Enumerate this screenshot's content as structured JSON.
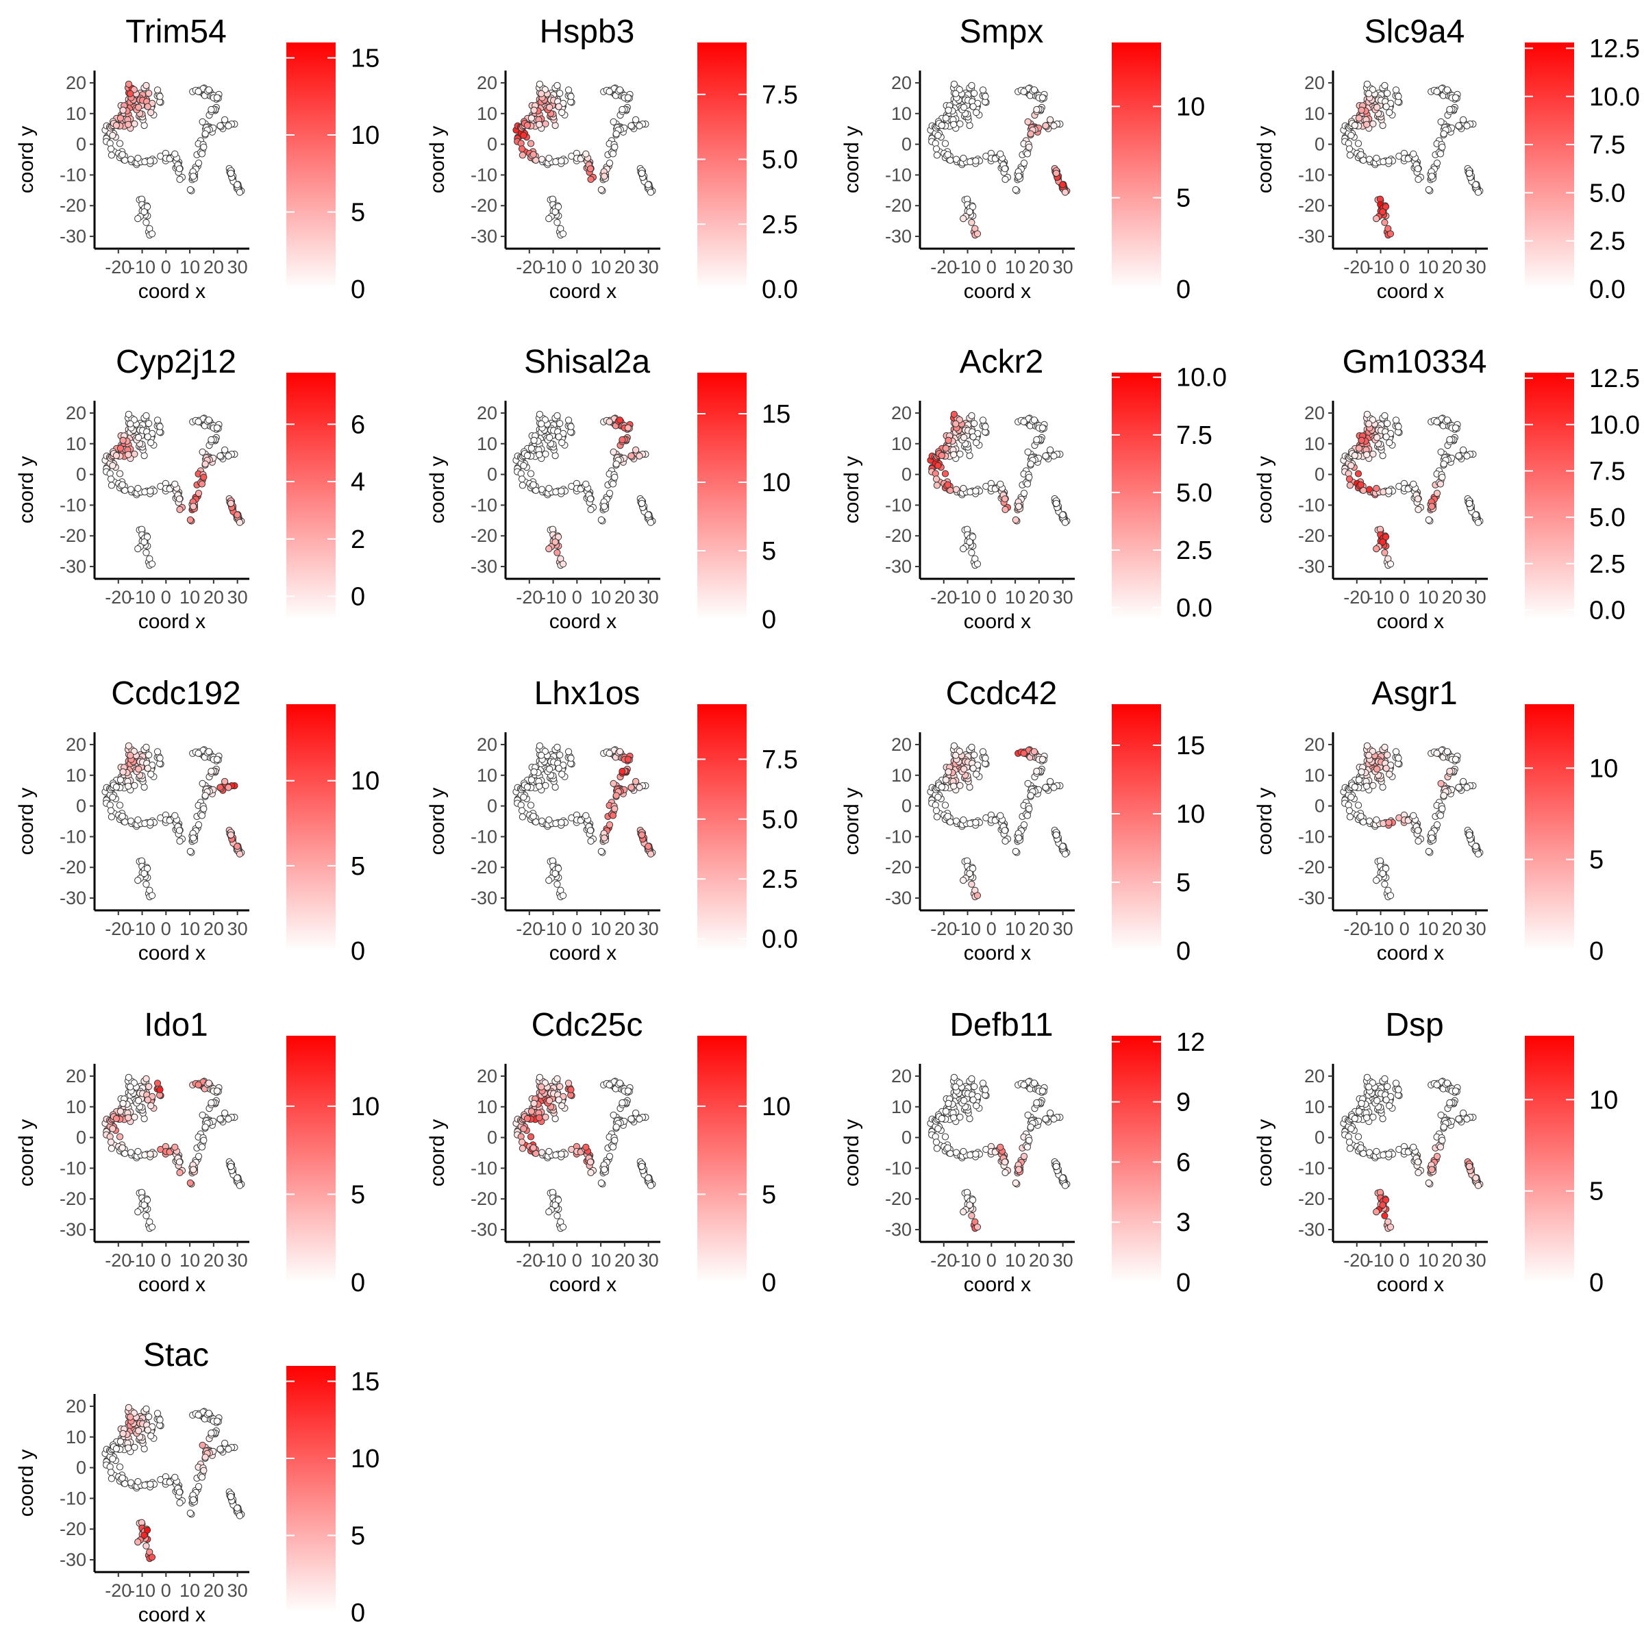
{
  "figure": {
    "background": "#ffffff",
    "point_low_color": "#ffffff",
    "point_high_color": "#ff0000",
    "point_stroke_color": "#333333",
    "grid": false
  },
  "chart_data": [
    {
      "type": "scatter",
      "title": "Trim54",
      "xlabel": "coord x",
      "ylabel": "coord y",
      "x_ticks": [
        "-20",
        "-10",
        "0",
        "10",
        "20",
        "30"
      ],
      "y_ticks": [
        "20",
        "10",
        "0",
        "-10",
        "-20",
        "-30"
      ],
      "colorbar_ticks": [
        "0",
        "5",
        "10",
        "15"
      ],
      "colorbar_range": [
        0,
        16
      ],
      "expression_hotspots": [
        {
          "x": -16,
          "y": 19,
          "v": 15
        },
        {
          "x": -15,
          "y": 12,
          "v": 7
        },
        {
          "x": -10,
          "y": 14,
          "v": 6
        },
        {
          "x": -18,
          "y": 8,
          "v": 5
        }
      ]
    },
    {
      "type": "scatter",
      "title": "Hspb3",
      "xlabel": "coord x",
      "ylabel": "coord y",
      "x_ticks": [
        "-20",
        "-10",
        "0",
        "10",
        "20",
        "30"
      ],
      "y_ticks": [
        "20",
        "10",
        "0",
        "-10",
        "-20",
        "-30"
      ],
      "colorbar_ticks": [
        "0.0",
        "2.5",
        "5.0",
        "7.5"
      ],
      "colorbar_range": [
        0,
        9.5
      ],
      "expression_hotspots": [
        {
          "x": -24,
          "y": 4,
          "v": 9
        },
        {
          "x": -20,
          "y": 1,
          "v": 7
        },
        {
          "x": -14,
          "y": 11,
          "v": 6
        },
        {
          "x": -22,
          "y": -3,
          "v": 6
        },
        {
          "x": 6,
          "y": -10,
          "v": 5
        }
      ]
    },
    {
      "type": "scatter",
      "title": "Smpx",
      "xlabel": "coord x",
      "ylabel": "coord y",
      "x_ticks": [
        "-20",
        "-10",
        "0",
        "10",
        "20",
        "30"
      ],
      "y_ticks": [
        "20",
        "10",
        "0",
        "-10",
        "-20",
        "-30"
      ],
      "colorbar_ticks": [
        "0",
        "5",
        "10"
      ],
      "colorbar_range": [
        0,
        13.5
      ],
      "expression_hotspots": [
        {
          "x": 29,
          "y": -12,
          "v": 12
        },
        {
          "x": 28,
          "y": -9,
          "v": 9
        },
        {
          "x": 19,
          "y": 5,
          "v": 5
        },
        {
          "x": -10,
          "y": -30,
          "v": 6
        }
      ]
    },
    {
      "type": "scatter",
      "title": "Slc9a4",
      "xlabel": "coord x",
      "ylabel": "coord y",
      "x_ticks": [
        "-20",
        "-10",
        "0",
        "10",
        "20",
        "30"
      ],
      "y_ticks": [
        "20",
        "10",
        "0",
        "-10",
        "-20",
        "-30"
      ],
      "colorbar_ticks": [
        "0.0",
        "2.5",
        "5.0",
        "7.5",
        "10.0",
        "12.5"
      ],
      "colorbar_range": [
        0,
        12.8
      ],
      "expression_hotspots": [
        {
          "x": -10,
          "y": -20,
          "v": 12
        },
        {
          "x": -9,
          "y": -25,
          "v": 11
        },
        {
          "x": -8,
          "y": -30,
          "v": 9
        },
        {
          "x": -16,
          "y": 10,
          "v": 5
        }
      ]
    },
    {
      "type": "scatter",
      "title": "Cyp2j12",
      "xlabel": "coord x",
      "ylabel": "coord y",
      "x_ticks": [
        "-20",
        "-10",
        "0",
        "10",
        "20",
        "30"
      ],
      "y_ticks": [
        "20",
        "10",
        "0",
        "-10",
        "-20",
        "-30"
      ],
      "colorbar_ticks": [
        "0",
        "2",
        "4",
        "6"
      ],
      "colorbar_range": [
        -0.8,
        7.8
      ],
      "expression_hotspots": [
        {
          "x": 10,
          "y": -14,
          "v": 7
        },
        {
          "x": 12,
          "y": -6,
          "v": 6
        },
        {
          "x": 15,
          "y": 0,
          "v": 5
        },
        {
          "x": -18,
          "y": 8,
          "v": 4
        },
        {
          "x": 28,
          "y": -12,
          "v": 4
        }
      ]
    },
    {
      "type": "scatter",
      "title": "Shisal2a",
      "xlabel": "coord x",
      "ylabel": "coord y",
      "x_ticks": [
        "-20",
        "-10",
        "0",
        "10",
        "20",
        "30"
      ],
      "y_ticks": [
        "20",
        "10",
        "0",
        "-10",
        "-20",
        "-30"
      ],
      "colorbar_ticks": [
        "0",
        "5",
        "10",
        "15"
      ],
      "colorbar_range": [
        0,
        18
      ],
      "expression_hotspots": [
        {
          "x": 20,
          "y": 18,
          "v": 17
        },
        {
          "x": 18,
          "y": 12,
          "v": 10
        },
        {
          "x": 22,
          "y": 9,
          "v": 8
        },
        {
          "x": -9,
          "y": -25,
          "v": 6
        }
      ]
    },
    {
      "type": "scatter",
      "title": "Ackr2",
      "xlabel": "coord x",
      "ylabel": "coord y",
      "x_ticks": [
        "-20",
        "-10",
        "0",
        "10",
        "20",
        "30"
      ],
      "y_ticks": [
        "20",
        "10",
        "0",
        "-10",
        "-20",
        "-30"
      ],
      "colorbar_ticks": [
        "0.0",
        "2.5",
        "5.0",
        "7.5",
        "10.0"
      ],
      "colorbar_range": [
        -0.5,
        10.2
      ],
      "expression_hotspots": [
        {
          "x": -22,
          "y": 12,
          "v": 10
        },
        {
          "x": -24,
          "y": 4,
          "v": 9
        },
        {
          "x": -20,
          "y": -2,
          "v": 8
        },
        {
          "x": -16,
          "y": 18,
          "v": 7
        },
        {
          "x": 6,
          "y": -12,
          "v": 6
        }
      ]
    },
    {
      "type": "scatter",
      "title": "Gm10334",
      "xlabel": "coord x",
      "ylabel": "coord y",
      "x_ticks": [
        "-20",
        "-10",
        "0",
        "10",
        "20",
        "30"
      ],
      "y_ticks": [
        "20",
        "10",
        "0",
        "-10",
        "-20",
        "-30"
      ],
      "colorbar_ticks": [
        "0.0",
        "2.5",
        "5.0",
        "7.5",
        "10.0",
        "12.5"
      ],
      "colorbar_range": [
        -0.5,
        12.8
      ],
      "expression_hotspots": [
        {
          "x": -20,
          "y": -2,
          "v": 12
        },
        {
          "x": -15,
          "y": -5,
          "v": 10
        },
        {
          "x": -9,
          "y": -21,
          "v": 11
        },
        {
          "x": -17,
          "y": 12,
          "v": 8
        },
        {
          "x": 12,
          "y": -8,
          "v": 7
        }
      ]
    },
    {
      "type": "scatter",
      "title": "Ccdc192",
      "xlabel": "coord x",
      "ylabel": "coord y",
      "x_ticks": [
        "-20",
        "-10",
        "0",
        "10",
        "20",
        "30"
      ],
      "y_ticks": [
        "20",
        "10",
        "0",
        "-10",
        "-20",
        "-30"
      ],
      "colorbar_ticks": [
        "0",
        "5",
        "10"
      ],
      "colorbar_range": [
        0,
        14.5
      ],
      "expression_hotspots": [
        {
          "x": 28,
          "y": 5,
          "v": 14
        },
        {
          "x": 25,
          "y": 6,
          "v": 11
        },
        {
          "x": 28,
          "y": -12,
          "v": 7
        },
        {
          "x": -14,
          "y": 14,
          "v": 5
        }
      ]
    },
    {
      "type": "scatter",
      "title": "Lhx1os",
      "xlabel": "coord x",
      "ylabel": "coord y",
      "x_ticks": [
        "-20",
        "-10",
        "0",
        "10",
        "20",
        "30"
      ],
      "y_ticks": [
        "20",
        "10",
        "0",
        "-10",
        "-20",
        "-30"
      ],
      "colorbar_ticks": [
        "0.0",
        "2.5",
        "5.0",
        "7.5"
      ],
      "colorbar_range": [
        -0.5,
        9.8
      ],
      "expression_hotspots": [
        {
          "x": 17,
          "y": 2,
          "v": 9
        },
        {
          "x": 20,
          "y": 10,
          "v": 9
        },
        {
          "x": 15,
          "y": -6,
          "v": 8
        },
        {
          "x": 22,
          "y": 14,
          "v": 7
        },
        {
          "x": 28,
          "y": -12,
          "v": 5
        }
      ]
    },
    {
      "type": "scatter",
      "title": "Ccdc42",
      "xlabel": "coord x",
      "ylabel": "coord y",
      "x_ticks": [
        "-20",
        "-10",
        "0",
        "10",
        "20",
        "30"
      ],
      "y_ticks": [
        "20",
        "10",
        "0",
        "-10",
        "-20",
        "-30"
      ],
      "colorbar_ticks": [
        "0",
        "5",
        "10",
        "15"
      ],
      "colorbar_range": [
        0,
        18
      ],
      "expression_hotspots": [
        {
          "x": 11,
          "y": 18,
          "v": 14
        },
        {
          "x": 14,
          "y": 17,
          "v": 10
        },
        {
          "x": -14,
          "y": 12,
          "v": 6
        },
        {
          "x": -8,
          "y": -30,
          "v": 6
        }
      ]
    },
    {
      "type": "scatter",
      "title": "Asgr1",
      "xlabel": "coord x",
      "ylabel": "coord y",
      "x_ticks": [
        "-20",
        "-10",
        "0",
        "10",
        "20",
        "30"
      ],
      "y_ticks": [
        "20",
        "10",
        "0",
        "-10",
        "-20",
        "-30"
      ],
      "colorbar_ticks": [
        "0",
        "5",
        "10"
      ],
      "colorbar_range": [
        0,
        13.5
      ],
      "expression_hotspots": [
        {
          "x": -4,
          "y": -9,
          "v": 13
        },
        {
          "x": -3,
          "y": -10,
          "v": 12
        },
        {
          "x": 14,
          "y": 10,
          "v": 5
        },
        {
          "x": -12,
          "y": 14,
          "v": 5
        }
      ]
    },
    {
      "type": "scatter",
      "title": "Ido1",
      "xlabel": "coord x",
      "ylabel": "coord y",
      "x_ticks": [
        "-20",
        "-10",
        "0",
        "10",
        "20",
        "30"
      ],
      "y_ticks": [
        "20",
        "10",
        "0",
        "-10",
        "-20",
        "-30"
      ],
      "colorbar_ticks": [
        "0",
        "5",
        "10"
      ],
      "colorbar_range": [
        0,
        14
      ],
      "expression_hotspots": [
        {
          "x": -3,
          "y": 15,
          "v": 12
        },
        {
          "x": 0,
          "y": -2,
          "v": 9
        },
        {
          "x": -20,
          "y": 4,
          "v": 7
        },
        {
          "x": 8,
          "y": -14,
          "v": 7
        },
        {
          "x": 14,
          "y": 18,
          "v": 6
        }
      ]
    },
    {
      "type": "scatter",
      "title": "Cdc25c",
      "xlabel": "coord x",
      "ylabel": "coord y",
      "x_ticks": [
        "-20",
        "-10",
        "0",
        "10",
        "20",
        "30"
      ],
      "y_ticks": [
        "20",
        "10",
        "0",
        "-10",
        "-20",
        "-30"
      ],
      "colorbar_ticks": [
        "0",
        "5",
        "10"
      ],
      "colorbar_range": [
        0,
        14
      ],
      "expression_hotspots": [
        {
          "x": -18,
          "y": 4,
          "v": 13
        },
        {
          "x": -20,
          "y": -2,
          "v": 11
        },
        {
          "x": -14,
          "y": 12,
          "v": 9
        },
        {
          "x": -2,
          "y": 16,
          "v": 8
        },
        {
          "x": 3,
          "y": -5,
          "v": 10
        }
      ]
    },
    {
      "type": "scatter",
      "title": "Defb11",
      "xlabel": "coord x",
      "ylabel": "coord y",
      "x_ticks": [
        "-20",
        "-10",
        "0",
        "10",
        "20",
        "30"
      ],
      "y_ticks": [
        "20",
        "10",
        "0",
        "-10",
        "-20",
        "-30"
      ],
      "colorbar_ticks": [
        "0",
        "3",
        "6",
        "9",
        "12"
      ],
      "colorbar_range": [
        0,
        12.3
      ],
      "expression_hotspots": [
        {
          "x": 6,
          "y": 2,
          "v": 12
        },
        {
          "x": 7,
          "y": -3,
          "v": 9
        },
        {
          "x": -8,
          "y": -30,
          "v": 8
        },
        {
          "x": 12,
          "y": -10,
          "v": 5
        }
      ]
    },
    {
      "type": "scatter",
      "title": "Dsp",
      "xlabel": "coord x",
      "ylabel": "coord y",
      "x_ticks": [
        "-20",
        "-10",
        "0",
        "10",
        "20",
        "30"
      ],
      "y_ticks": [
        "20",
        "10",
        "0",
        "-10",
        "-20",
        "-30"
      ],
      "colorbar_ticks": [
        "0",
        "5",
        "10"
      ],
      "colorbar_range": [
        0,
        13.5
      ],
      "expression_hotspots": [
        {
          "x": -10,
          "y": -25,
          "v": 13
        },
        {
          "x": -8,
          "y": -21,
          "v": 10
        },
        {
          "x": 28,
          "y": -10,
          "v": 6
        },
        {
          "x": 12,
          "y": -8,
          "v": 5
        }
      ]
    },
    {
      "type": "scatter",
      "title": "Stac",
      "xlabel": "coord x",
      "ylabel": "coord y",
      "x_ticks": [
        "-20",
        "-10",
        "0",
        "10",
        "20",
        "30"
      ],
      "y_ticks": [
        "20",
        "10",
        "0",
        "-10",
        "-20",
        "-30"
      ],
      "colorbar_ticks": [
        "0",
        "5",
        "10",
        "15"
      ],
      "colorbar_range": [
        0,
        16
      ],
      "expression_hotspots": [
        {
          "x": -8,
          "y": -21,
          "v": 15
        },
        {
          "x": -6,
          "y": -31,
          "v": 12
        },
        {
          "x": 13,
          "y": 5,
          "v": 8
        },
        {
          "x": -14,
          "y": 14,
          "v": 6
        }
      ]
    }
  ]
}
